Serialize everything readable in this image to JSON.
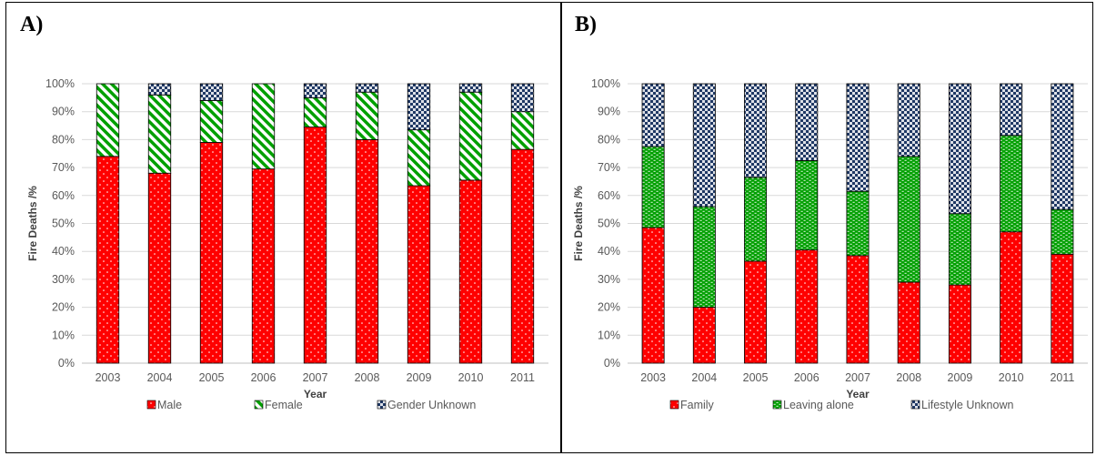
{
  "panels": {
    "a": {
      "label": "A)"
    },
    "b": {
      "label": "B)"
    }
  },
  "colors": {
    "red": "#ff0000",
    "green": "#00a000",
    "navy": "#1f3864"
  },
  "chart_data": [
    {
      "type": "bar",
      "stacked": true,
      "categories": [
        "2003",
        "2004",
        "2005",
        "2006",
        "2007",
        "2008",
        "2009",
        "2010",
        "2011"
      ],
      "series": [
        {
          "name": "Male",
          "pattern": "dotted-red",
          "values": [
            74,
            68,
            79,
            69.5,
            84.5,
            80,
            63.5,
            65.5,
            76.5
          ]
        },
        {
          "name": "Female",
          "pattern": "diagonal-green",
          "values": [
            26,
            28,
            15,
            30.5,
            10.5,
            17,
            20,
            31.5,
            13.5
          ]
        },
        {
          "name": "Gender Unknown",
          "pattern": "checker-navy",
          "values": [
            0,
            4,
            6,
            0,
            5,
            3,
            16.5,
            3,
            10
          ]
        }
      ],
      "xlabel": "Year",
      "ylabel": "Fire Deaths /%",
      "ylim": [
        0,
        100
      ],
      "yticks": [
        "0%",
        "10%",
        "20%",
        "30%",
        "40%",
        "50%",
        "60%",
        "70%",
        "80%",
        "90%",
        "100%"
      ],
      "grid": true,
      "legend": "bottom"
    },
    {
      "type": "bar",
      "stacked": true,
      "categories": [
        "2003",
        "2004",
        "2005",
        "2006",
        "2007",
        "2008",
        "2009",
        "2010",
        "2011"
      ],
      "series": [
        {
          "name": "Family",
          "pattern": "dotted-red",
          "values": [
            48.5,
            20,
            36.5,
            40.5,
            38.5,
            29,
            28,
            47,
            39
          ]
        },
        {
          "name": "Leaving alone",
          "pattern": "brick-green",
          "values": [
            29,
            36,
            30,
            32,
            23,
            45,
            25.5,
            34.5,
            16
          ]
        },
        {
          "name": "Lifestyle Unknown",
          "pattern": "checker-navy",
          "values": [
            22.5,
            44,
            33.5,
            27.5,
            38.5,
            26,
            46.5,
            18.5,
            45
          ]
        }
      ],
      "xlabel": "Year",
      "ylabel": "Fire Deaths /%",
      "ylim": [
        0,
        100
      ],
      "yticks": [
        "0%",
        "10%",
        "20%",
        "30%",
        "40%",
        "50%",
        "60%",
        "70%",
        "80%",
        "90%",
        "100%"
      ],
      "grid": true,
      "legend": "bottom"
    }
  ]
}
